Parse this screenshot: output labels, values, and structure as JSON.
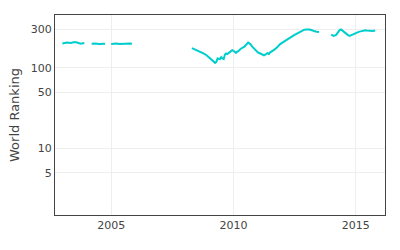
{
  "chart_data": {
    "type": "line",
    "y_label": "World Ranking",
    "color": "#00CDCD",
    "log": "y",
    "grid": true,
    "xlim": [
      2002.7,
      2016.2
    ],
    "xticks": [
      2005,
      2010,
      2015
    ],
    "ylim": [
      1.5,
      450
    ],
    "yticks": [
      5,
      10,
      50,
      100,
      300
    ],
    "series": [
      {
        "x": [
          2003.0,
          2003.1,
          2003.2,
          2003.35,
          2003.5,
          2003.6,
          2003.75,
          2003.9
        ],
        "values": [
          200,
          202,
          205,
          203,
          208,
          205,
          198,
          202
        ]
      },
      {
        "x": [
          2004.2,
          2004.35,
          2004.5,
          2004.6,
          2004.75
        ],
        "values": [
          198,
          200,
          197,
          199,
          198
        ]
      },
      {
        "x": [
          2005.0,
          2005.1,
          2005.2,
          2005.35,
          2005.45,
          2005.55,
          2005.65,
          2005.75,
          2005.85
        ],
        "values": [
          197,
          198,
          200,
          197,
          198,
          200,
          198,
          200,
          198
        ]
      },
      {
        "x": [
          2008.3,
          2008.45,
          2008.6,
          2008.75,
          2008.9,
          2009.0,
          2009.1,
          2009.2,
          2009.25,
          2009.3,
          2009.35,
          2009.45,
          2009.5,
          2009.55,
          2009.6,
          2009.65,
          2009.7,
          2009.75,
          2009.85,
          2009.9,
          2009.95,
          2010.0,
          2010.05,
          2010.1,
          2010.15,
          2010.2,
          2010.3,
          2010.35,
          2010.4,
          2010.45,
          2010.5,
          2010.55,
          2010.6,
          2010.65,
          2010.7,
          2010.75,
          2010.8,
          2010.85,
          2010.9,
          2010.95,
          2011.0,
          2011.1,
          2011.15,
          2011.2,
          2011.25,
          2011.3,
          2011.35,
          2011.4,
          2011.45,
          2011.5,
          2011.6,
          2011.65,
          2011.7,
          2011.8,
          2011.85,
          2011.9,
          2012.0,
          2012.1,
          2012.2,
          2012.3,
          2012.4,
          2012.5,
          2012.6,
          2012.7,
          2012.75,
          2012.8,
          2012.85,
          2012.9,
          2013.0,
          2013.05,
          2013.1,
          2013.15,
          2013.2,
          2013.3,
          2013.4,
          2013.5
        ],
        "values": [
          175,
          168,
          160,
          152,
          143,
          135,
          125,
          120,
          115,
          118,
          130,
          128,
          135,
          130,
          128,
          145,
          150,
          148,
          155,
          162,
          165,
          162,
          158,
          153,
          158,
          160,
          172,
          175,
          178,
          182,
          190,
          195,
          205,
          200,
          195,
          185,
          178,
          170,
          165,
          160,
          155,
          150,
          148,
          145,
          142,
          145,
          148,
          152,
          148,
          155,
          162,
          165,
          170,
          180,
          188,
          195,
          205,
          215,
          222,
          232,
          245,
          255,
          265,
          275,
          282,
          288,
          292,
          296,
          298,
          300,
          298,
          295,
          290,
          285,
          280,
          278
        ]
      },
      {
        "x": [
          2014.0,
          2014.05,
          2014.1,
          2014.2,
          2014.25,
          2014.3,
          2014.35,
          2014.4,
          2014.45,
          2014.5,
          2014.55,
          2014.6,
          2014.65,
          2014.7,
          2014.75,
          2014.8,
          2014.85,
          2014.9,
          2014.95,
          2015.0,
          2015.05,
          2015.1,
          2015.15,
          2015.2,
          2015.25,
          2015.3,
          2015.35,
          2015.4,
          2015.45,
          2015.5,
          2015.55,
          2015.6,
          2015.65,
          2015.7,
          2015.75,
          2015.8
        ],
        "values": [
          258,
          252,
          248,
          255,
          270,
          285,
          295,
          298,
          290,
          278,
          270,
          262,
          256,
          252,
          248,
          252,
          258,
          262,
          268,
          272,
          275,
          278,
          280,
          282,
          285,
          288,
          290,
          292,
          290,
          288,
          285,
          283,
          282,
          285,
          288,
          290
        ]
      }
    ]
  }
}
